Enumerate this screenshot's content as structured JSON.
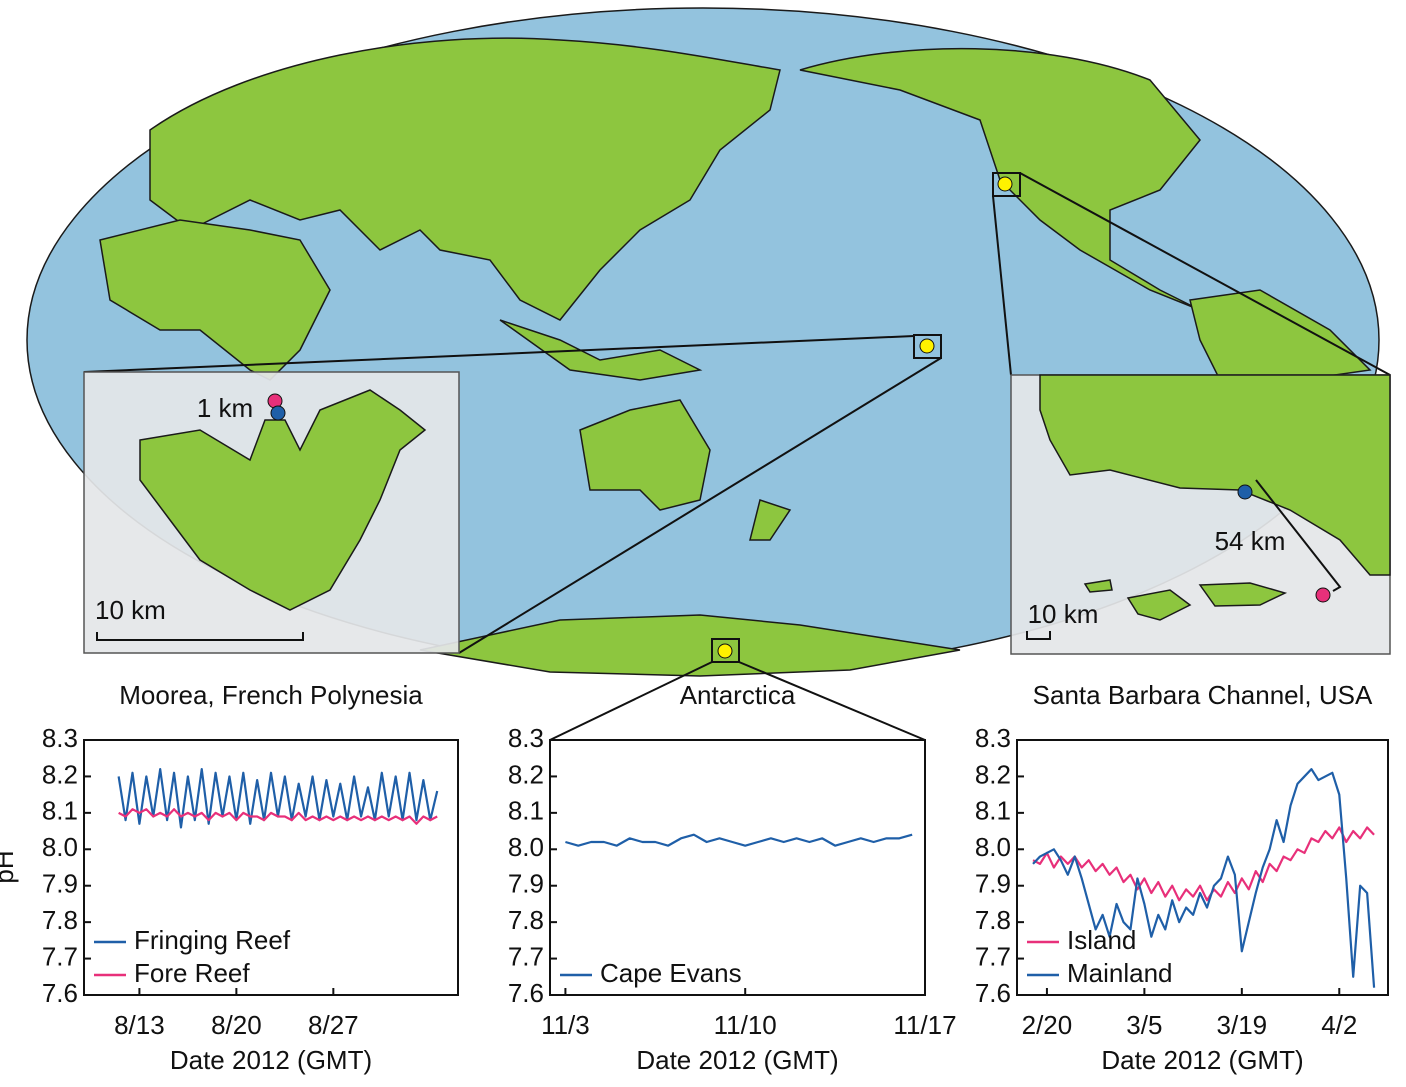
{
  "map": {
    "moorea_scale_small": "1 km",
    "moorea_scale": "10 km",
    "sb_distance": "54 km",
    "sb_scale": "10 km"
  },
  "chart_data": [
    {
      "type": "line",
      "title": "Moorea, French Polynesia",
      "xlabel": "Date 2012 (GMT)",
      "ylabel": "pH",
      "xlim": [
        9,
        36
      ],
      "xticks": [
        {
          "value": 13,
          "label": "8/13"
        },
        {
          "value": 20,
          "label": "8/20"
        },
        {
          "value": 27,
          "label": "8/27"
        }
      ],
      "ylim": [
        7.6,
        8.3
      ],
      "yticks": [
        7.6,
        7.7,
        7.8,
        7.9,
        {
          "value": 8,
          "label": "8.0"
        },
        8.1,
        8.2,
        8.3
      ],
      "legend": "lower left",
      "x": [
        11.5,
        12,
        12.5,
        13,
        13.5,
        14,
        14.5,
        15,
        15.5,
        16,
        16.5,
        17,
        17.5,
        18,
        18.5,
        19,
        19.5,
        20,
        20.5,
        21,
        21.5,
        22,
        22.5,
        23,
        23.5,
        24,
        24.5,
        25,
        25.5,
        26,
        26.5,
        27,
        27.5,
        28,
        28.5,
        29,
        29.5,
        30,
        30.5,
        31,
        31.5,
        32,
        32.5,
        33,
        33.5,
        34,
        34.5
      ],
      "series": [
        {
          "name": "Fringing Reef",
          "color": "#1f5fa8",
          "values": [
            8.2,
            8.08,
            8.21,
            8.07,
            8.2,
            8.09,
            8.22,
            8.08,
            8.21,
            8.06,
            8.2,
            8.08,
            8.22,
            8.07,
            8.21,
            8.09,
            8.2,
            8.08,
            8.21,
            8.07,
            8.19,
            8.08,
            8.21,
            8.09,
            8.2,
            8.08,
            8.18,
            8.09,
            8.2,
            8.08,
            8.19,
            8.09,
            8.18,
            8.08,
            8.2,
            8.09,
            8.17,
            8.08,
            8.21,
            8.09,
            8.2,
            8.08,
            8.21,
            8.08,
            8.19,
            8.08,
            8.16
          ]
        },
        {
          "name": "Fore Reef",
          "color": "#e8307a",
          "values": [
            8.1,
            8.09,
            8.11,
            8.1,
            8.11,
            8.09,
            8.1,
            8.09,
            8.11,
            8.09,
            8.1,
            8.09,
            8.1,
            8.08,
            8.1,
            8.09,
            8.1,
            8.08,
            8.1,
            8.09,
            8.09,
            8.08,
            8.1,
            8.09,
            8.09,
            8.08,
            8.1,
            8.08,
            8.09,
            8.08,
            8.09,
            8.08,
            8.09,
            8.08,
            8.09,
            8.08,
            8.09,
            8.08,
            8.09,
            8.08,
            8.09,
            8.08,
            8.09,
            8.07,
            8.09,
            8.08,
            8.09
          ]
        }
      ]
    },
    {
      "type": "line",
      "title": "Antarctica",
      "xlabel": "Date 2012 (GMT)",
      "xlim": [
        2.4,
        17
      ],
      "xticks": [
        {
          "value": 3,
          "label": "11/3"
        },
        {
          "value": 10,
          "label": "11/10"
        },
        {
          "value": 17,
          "label": "11/17"
        }
      ],
      "ylim": [
        7.6,
        8.3
      ],
      "yticks": [
        7.6,
        7.7,
        7.8,
        7.9,
        {
          "value": 8,
          "label": "8.0"
        },
        8.1,
        8.2,
        8.3
      ],
      "legend": "lower left",
      "x": [
        3,
        3.5,
        4,
        4.5,
        5,
        5.5,
        6,
        6.5,
        7,
        7.5,
        8,
        8.5,
        9,
        9.5,
        10,
        10.5,
        11,
        11.5,
        12,
        12.5,
        13,
        13.5,
        14,
        14.5,
        15,
        15.5,
        16,
        16.5
      ],
      "series": [
        {
          "name": "Cape Evans",
          "color": "#1f5fa8",
          "values": [
            8.02,
            8.01,
            8.02,
            8.02,
            8.01,
            8.03,
            8.02,
            8.02,
            8.01,
            8.03,
            8.04,
            8.02,
            8.03,
            8.02,
            8.01,
            8.02,
            8.03,
            8.02,
            8.03,
            8.02,
            8.03,
            8.01,
            8.02,
            8.03,
            8.02,
            8.03,
            8.03,
            8.04
          ]
        }
      ]
    },
    {
      "type": "line",
      "title": "Santa Barbara Channel, USA",
      "xlabel": "Date 2012 (GMT)",
      "xlim": [
        46.7,
        100
      ],
      "xticks": [
        {
          "value": 51,
          "label": "2/20"
        },
        {
          "value": 65,
          "label": "3/5"
        },
        {
          "value": 79,
          "label": "3/19"
        },
        {
          "value": 93,
          "label": "4/2"
        }
      ],
      "ylim": [
        7.6,
        8.3
      ],
      "yticks": [
        7.6,
        7.7,
        7.8,
        7.9,
        {
          "value": 8,
          "label": "8.0"
        },
        8.1,
        8.2,
        8.3
      ],
      "legend": "lower left",
      "x": [
        49,
        50,
        51,
        52,
        53,
        54,
        55,
        56,
        57,
        58,
        59,
        60,
        61,
        62,
        63,
        64,
        65,
        66,
        67,
        68,
        69,
        70,
        71,
        72,
        73,
        74,
        75,
        76,
        77,
        78,
        79,
        80,
        81,
        82,
        83,
        84,
        85,
        86,
        87,
        88,
        89,
        90,
        91,
        92,
        93,
        94,
        95,
        96,
        97,
        98
      ],
      "series": [
        {
          "name": "Island",
          "color": "#e8307a",
          "values": [
            7.97,
            7.96,
            7.99,
            7.95,
            7.98,
            7.96,
            7.98,
            7.95,
            7.97,
            7.94,
            7.96,
            7.93,
            7.95,
            7.91,
            7.93,
            7.89,
            7.92,
            7.88,
            7.91,
            7.87,
            7.9,
            7.86,
            7.89,
            7.87,
            7.9,
            7.86,
            7.89,
            7.87,
            7.91,
            7.88,
            7.92,
            7.89,
            7.94,
            7.91,
            7.96,
            7.94,
            7.98,
            7.97,
            8.0,
            7.99,
            8.03,
            8.02,
            8.05,
            8.03,
            8.06,
            8.02,
            8.05,
            8.03,
            8.06,
            8.04
          ]
        },
        {
          "name": "Mainland",
          "color": "#1f5fa8",
          "values": [
            7.96,
            7.98,
            7.99,
            8.0,
            7.97,
            7.93,
            7.98,
            7.92,
            7.85,
            7.78,
            7.82,
            7.76,
            7.85,
            7.8,
            7.78,
            7.92,
            7.85,
            7.76,
            7.82,
            7.78,
            7.86,
            7.8,
            7.84,
            7.82,
            7.88,
            7.84,
            7.9,
            7.92,
            7.98,
            7.93,
            7.72,
            7.8,
            7.88,
            7.95,
            8.0,
            8.08,
            8.02,
            8.12,
            8.18,
            8.2,
            8.22,
            8.19,
            8.2,
            8.21,
            8.15,
            7.92,
            7.65,
            7.9,
            7.88,
            7.62
          ]
        }
      ]
    }
  ]
}
